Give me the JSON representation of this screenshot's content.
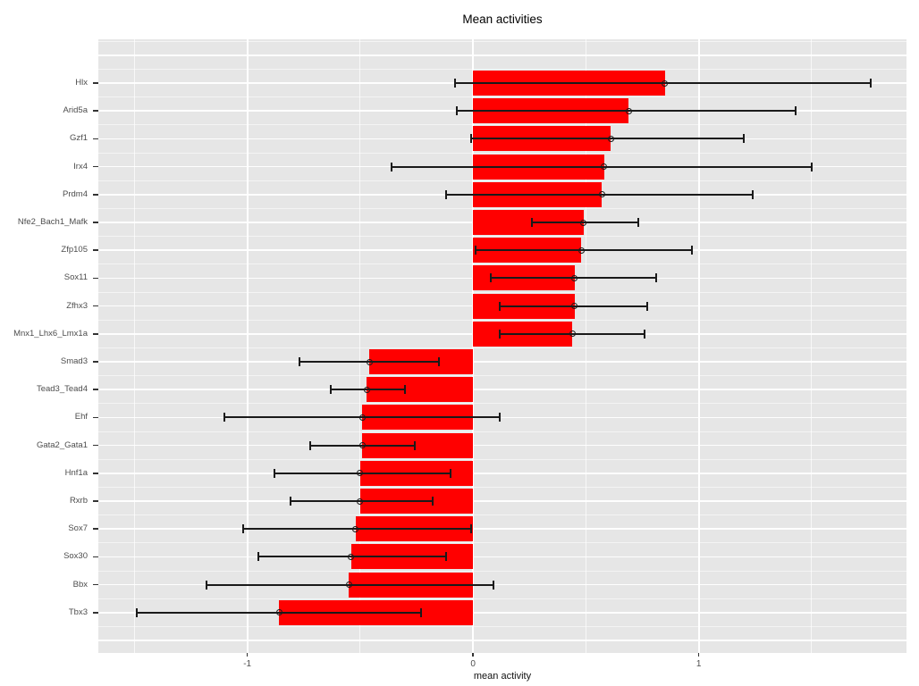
{
  "title": "Mean activities",
  "axes": {
    "x_label": "mean activity",
    "x_tick_labels": [
      "-1",
      "0",
      "1"
    ],
    "x_tick_values": [
      -1,
      0,
      1
    ],
    "y_labels_top_to_bottom": [
      "Hlx",
      "Arid5a",
      "Gzf1",
      "Irx4",
      "Prdm4",
      "Nfe2_Bach1_Mafk",
      "Zfp105",
      "Sox11",
      "Zfhx3",
      "Mnx1_Lhx6_Lmx1a",
      "Smad3",
      "Tead3_Tead4",
      "Ehf",
      "Gata2_Gata1",
      "Hnf1a",
      "Rxrb",
      "Sox7",
      "Sox30",
      "Bbx",
      "Tbx3"
    ]
  },
  "chart_data": {
    "type": "bar",
    "orientation": "horizontal",
    "title": "Mean activities",
    "xlabel": "mean activity",
    "ylabel": "",
    "categories": [
      "Hlx",
      "Arid5a",
      "Gzf1",
      "Irx4",
      "Prdm4",
      "Nfe2_Bach1_Mafk",
      "Zfp105",
      "Sox11",
      "Zfhx3",
      "Mnx1_Lhx6_Lmx1a",
      "Smad3",
      "Tead3_Tead4",
      "Ehf",
      "Gata2_Gata1",
      "Hnf1a",
      "Rxrb",
      "Sox7",
      "Sox30",
      "Bbx",
      "Tbx3"
    ],
    "values": [
      0.85,
      0.69,
      0.61,
      0.58,
      0.57,
      0.49,
      0.48,
      0.45,
      0.45,
      0.44,
      -0.46,
      -0.47,
      -0.49,
      -0.49,
      -0.5,
      -0.5,
      -0.52,
      -0.54,
      -0.55,
      -0.86
    ],
    "error_low": [
      -0.08,
      -0.07,
      -0.01,
      -0.36,
      -0.12,
      0.26,
      0.01,
      0.08,
      0.12,
      0.12,
      -0.77,
      -0.63,
      -1.1,
      -0.72,
      -0.88,
      -0.81,
      -1.02,
      -0.95,
      -1.18,
      -1.49
    ],
    "error_high": [
      1.76,
      1.43,
      1.2,
      1.5,
      1.24,
      0.73,
      0.97,
      0.81,
      0.77,
      0.76,
      -0.15,
      -0.3,
      0.12,
      -0.26,
      -0.1,
      -0.18,
      -0.01,
      -0.12,
      0.09,
      -0.23
    ],
    "xlim": [
      -1.66,
      1.92
    ],
    "x_ticks": [
      -1,
      0,
      1
    ],
    "grid": "white major and minor gridlines on grey panel",
    "legend": "none",
    "bar_color": "#FF0000",
    "errorbar_color": "#1A1A1A",
    "panel_bg": "#E6E6E6",
    "tick_label_color": "#4D4D4D",
    "point_marker": "open-circle-at-mean"
  }
}
